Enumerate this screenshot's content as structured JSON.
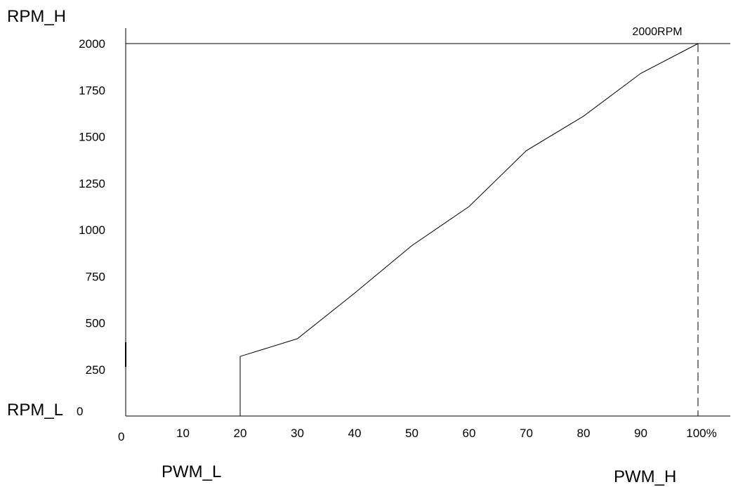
{
  "chart_data": {
    "type": "line",
    "ylabel": "RPM_H",
    "ylabel_low": "RPM_L",
    "xlabel_low": "PWM_L",
    "xlabel_high": "PWM_H",
    "x_origin_label": "0",
    "y_origin_label": "0",
    "x_ticks": [
      10,
      20,
      30,
      40,
      50,
      60,
      70,
      80,
      90,
      100
    ],
    "x_tick_labels": [
      "10",
      "20",
      "30",
      "40",
      "50",
      "60",
      "70",
      "80",
      "90",
      "100%"
    ],
    "y_ticks": [
      250,
      500,
      750,
      1000,
      1250,
      1500,
      1750,
      2000
    ],
    "y_tick_labels": [
      "250",
      "500",
      "750",
      "1000",
      "1250",
      "1500",
      "1750",
      "2000"
    ],
    "xlim": [
      0,
      105
    ],
    "ylim": [
      0,
      2000
    ],
    "series": [
      {
        "x": [
          20,
          20,
          30,
          40,
          50,
          60,
          70,
          80,
          90,
          100
        ],
        "y": [
          0,
          320,
          415,
          660,
          915,
          1125,
          1425,
          1610,
          1840,
          2000
        ]
      }
    ],
    "annotation": {
      "text": "2000RPM",
      "x": 100,
      "y": 2000
    },
    "max_line_y": 2000,
    "max_marker_x": 100
  }
}
